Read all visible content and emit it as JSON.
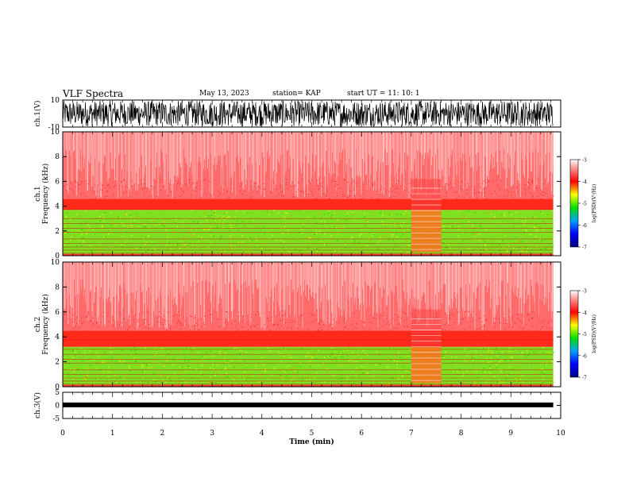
{
  "header": {
    "title": "VLF Spectra",
    "date": "May 13, 2023",
    "station": "station= KAP",
    "start": "start  UT =   11: 10: 1"
  },
  "chart_data": [
    {
      "type": "line",
      "panel": "ch1-waveform",
      "ylabel": "ch.1(V)",
      "ylim": [
        -10,
        10
      ],
      "y_tick_labels": [
        "10",
        "-10"
      ],
      "xlim": [
        0,
        9.85
      ],
      "description_values": {
        "fill": "dense noise",
        "amplitude_range": [
          -10,
          10
        ]
      }
    },
    {
      "type": "heatmap",
      "panel": "ch1-spectrogram",
      "ylabel": "ch.1\nFrequency  (kHz)",
      "ylim": [
        0,
        10
      ],
      "y_tick_labels": [
        "0",
        "2",
        "4",
        "6",
        "8",
        "10"
      ],
      "xlim": [
        0,
        9.85
      ],
      "colorbar": {
        "label": "log(PSD)(V²/Hz)",
        "range": [
          -7,
          -3
        ],
        "tick_labels": [
          "-3",
          "-4",
          "-5",
          "-6",
          "-7"
        ]
      },
      "bands": [
        {
          "f_lo": 0,
          "f_hi": 3.7,
          "level": -4.6
        },
        {
          "f_lo": 3.7,
          "f_hi": 4.6,
          "level": -3.8
        },
        {
          "f_lo": 4.6,
          "f_hi": 10,
          "level": -3.2
        }
      ],
      "event_interval_min": [
        7.0,
        7.6
      ]
    },
    {
      "type": "heatmap",
      "panel": "ch2-spectrogram",
      "ylabel": "ch.2\nFrequency  (kHz)",
      "ylim": [
        0,
        10
      ],
      "y_tick_labels": [
        "0",
        "2",
        "4",
        "6",
        "8",
        "10"
      ],
      "xlim": [
        0,
        9.85
      ],
      "colorbar": {
        "label": "log(PSD)(V²/Hz)",
        "range": [
          -7,
          -3
        ],
        "tick_labels": [
          "-3",
          "-4",
          "-5",
          "-6",
          "-7"
        ]
      },
      "bands": [
        {
          "f_lo": 0,
          "f_hi": 3.2,
          "level": -4.7
        },
        {
          "f_lo": 3.2,
          "f_hi": 4.5,
          "level": -3.8
        },
        {
          "f_lo": 4.5,
          "f_hi": 10,
          "level": -3.2
        }
      ],
      "event_interval_min": [
        7.0,
        7.6
      ]
    },
    {
      "type": "line",
      "panel": "ch3-waveform",
      "ylabel": "ch.3(V)",
      "ylim": [
        -5,
        5
      ],
      "y_tick_labels": [
        "5",
        "0",
        "-5"
      ],
      "xlim": [
        0,
        9.85
      ],
      "level_V": 0.2
    }
  ],
  "x_axis": {
    "label": "Time  (min)",
    "range": [
      0,
      10
    ],
    "tick_labels": [
      "0",
      "1",
      "2",
      "3",
      "4",
      "5",
      "6",
      "7",
      "8",
      "9",
      "10"
    ]
  },
  "colors": {
    "low": "#00008b",
    "mid_low": "#00e000",
    "mid": "#ffff00",
    "high": "#ff0000",
    "max": "#ffffff",
    "frame": "#000000"
  }
}
